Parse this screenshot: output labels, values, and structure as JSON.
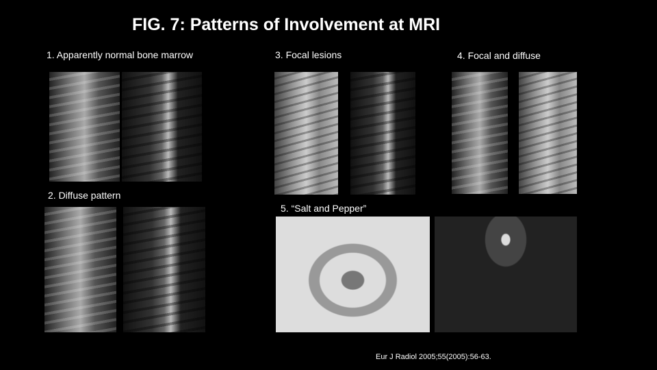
{
  "title": "FIG. 7: Patterns of Involvement at MRI",
  "panels": [
    {
      "label": "1. Apparently normal bone marrow"
    },
    {
      "label": "2. Diffuse pattern"
    },
    {
      "label": "3. Focal lesions"
    },
    {
      "label": "4. Focal and diffuse"
    },
    {
      "label": "5. “Salt and Pepper”"
    }
  ],
  "citation": "Eur J Radiol 2005;55(2005):56-63."
}
